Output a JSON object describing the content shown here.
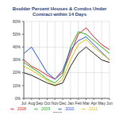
{
  "chart_data": {
    "type": "line",
    "title": "Boulder Percent Houses & Condos Under Contract within 14 Days",
    "categories": [
      "Jul",
      "Aug",
      "Sep",
      "Oct",
      "Nov",
      "Dec",
      "Jan",
      "Feb",
      "Mar",
      "Apr",
      "May",
      "Jun"
    ],
    "series": [
      {
        "name": "2008",
        "color": "#e02020",
        "values": [
          30,
          25,
          22,
          18,
          15,
          20,
          35,
          50,
          55,
          48,
          42,
          38
        ]
      },
      {
        "name": "2009",
        "color": "#20b020",
        "values": [
          28,
          24,
          20,
          15,
          12,
          18,
          40,
          52,
          50,
          45,
          40,
          35
        ]
      },
      {
        "name": "2010",
        "color": "#2050e0",
        "values": [
          35,
          40,
          30,
          20,
          15,
          22,
          38,
          45,
          48,
          42,
          36,
          30
        ]
      },
      {
        "name": "2011",
        "color": "#e0c000",
        "values": [
          25,
          22,
          18,
          14,
          10,
          15,
          30,
          42,
          46,
          40,
          35,
          30
        ]
      },
      {
        "name": "2012",
        "color": "#202020",
        "values": [
          20,
          18,
          15,
          12,
          10,
          12,
          25,
          35,
          40,
          35,
          30,
          28
        ]
      }
    ],
    "ylim": [
      0,
      60
    ],
    "yticks": [
      {
        "value": 0,
        "label": "0%"
      },
      {
        "value": 10,
        "label": "10%"
      },
      {
        "value": 20,
        "label": "20%"
      },
      {
        "value": 30,
        "label": "30%"
      },
      {
        "value": 40,
        "label": "40%"
      },
      {
        "value": 50,
        "label": "50%"
      },
      {
        "value": 60,
        "label": "60%"
      }
    ],
    "grid": true,
    "legend": "bottom"
  }
}
